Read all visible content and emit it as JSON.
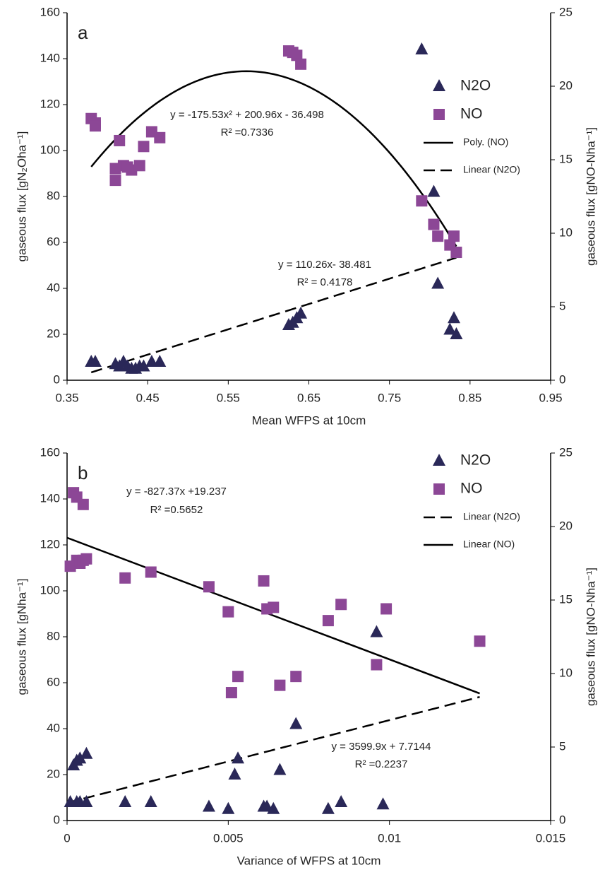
{
  "chart_data": [
    {
      "type": "scatter",
      "panel_label": "a",
      "xlabel": "Mean WFPS at 10cm",
      "ylabel": "gaseous flux [gN₂Oha⁻¹]",
      "y2label": "gaseous flux [gNO-Nha⁻¹]",
      "xlim": [
        0.35,
        0.95
      ],
      "xticks": [
        0.35,
        0.45,
        0.55,
        0.65,
        0.75,
        0.85,
        0.95
      ],
      "ylim": [
        0,
        160
      ],
      "yticks": [
        0,
        20,
        40,
        60,
        80,
        100,
        120,
        140,
        160
      ],
      "y2lim": [
        0,
        25
      ],
      "y2ticks": [
        0,
        5,
        10,
        15,
        20,
        25
      ],
      "series": [
        {
          "name": "N2O",
          "color": "#2a2858",
          "marker": "triangle",
          "x": [
            0.38,
            0.385,
            0.41,
            0.415,
            0.42,
            0.425,
            0.43,
            0.435,
            0.44,
            0.445,
            0.455,
            0.465,
            0.625,
            0.63,
            0.635,
            0.64,
            0.79,
            0.805,
            0.81,
            0.825,
            0.83,
            0.833
          ],
          "values": [
            8,
            8,
            7,
            6,
            8,
            6,
            5,
            5,
            6,
            6,
            8,
            8,
            24,
            25,
            27,
            29,
            144,
            82,
            42,
            22,
            27,
            20
          ]
        },
        {
          "name": "NO",
          "color": "#8c4796",
          "marker": "square",
          "axis": "y2",
          "x": [
            0.38,
            0.385,
            0.385,
            0.41,
            0.41,
            0.415,
            0.42,
            0.425,
            0.43,
            0.44,
            0.445,
            0.455,
            0.465,
            0.625,
            0.63,
            0.635,
            0.64,
            0.79,
            0.805,
            0.81,
            0.825,
            0.83,
            0.833
          ],
          "values": [
            17.8,
            17.5,
            17.3,
            14.4,
            13.6,
            16.3,
            14.6,
            14.5,
            14.3,
            14.6,
            15.9,
            16.9,
            16.5,
            22.4,
            22.3,
            22.1,
            21.5,
            12.2,
            10.6,
            9.8,
            9.2,
            9.8,
            8.7
          ]
        }
      ],
      "trendlines": [
        {
          "name": "Poly. (NO)",
          "style": "solid",
          "axis": "y2",
          "coefficients": [
            -175.53,
            200.96,
            -36.498
          ],
          "x_range": [
            0.38,
            0.833
          ]
        },
        {
          "name": "Linear (N2O)",
          "style": "dashed",
          "coefficients": [
            110.26,
            -38.481
          ],
          "x_range": [
            0.38,
            0.833
          ]
        }
      ],
      "annotations": [
        "y = -175.53x² + 200.96x - 36.498",
        "R² =0.7336",
        "y = 110.26x-  38.481",
        "R² = 0.4178"
      ]
    },
    {
      "type": "scatter",
      "panel_label": "b",
      "xlabel": "Variance of WFPS at 10cm",
      "ylabel": "gaseous flux [gNha⁻¹]",
      "y2label": "gaseous flux [gNO-Nha⁻¹]",
      "xlim": [
        0,
        0.015
      ],
      "xticks": [
        0,
        0.005,
        0.01,
        0.015
      ],
      "ylim": [
        0,
        160
      ],
      "yticks": [
        0,
        20,
        40,
        60,
        80,
        100,
        120,
        140,
        160
      ],
      "y2lim": [
        0,
        25
      ],
      "y2ticks": [
        0,
        5,
        10,
        15,
        20,
        25
      ],
      "series": [
        {
          "name": "N2O",
          "color": "#2a2858",
          "marker": "triangle",
          "x": [
            0.0001,
            0.0002,
            0.0003,
            0.0003,
            0.0004,
            0.0004,
            0.0006,
            0.0006,
            0.0018,
            0.0026,
            0.0044,
            0.005,
            0.0052,
            0.0053,
            0.0061,
            0.0062,
            0.0064,
            0.0066,
            0.0071,
            0.0081,
            0.0085,
            0.0096,
            0.0098
          ],
          "values": [
            8,
            24,
            26,
            8,
            27,
            8,
            29,
            8,
            8,
            8,
            6,
            5,
            20,
            27,
            6,
            6,
            5,
            22,
            42,
            5,
            8,
            82,
            7
          ]
        },
        {
          "name": "NO",
          "color": "#8c4796",
          "marker": "square",
          "axis": "y2",
          "x": [
            0.0001,
            0.0002,
            0.0003,
            0.0003,
            0.0004,
            0.0005,
            0.0005,
            0.0006,
            0.0018,
            0.0026,
            0.0044,
            0.005,
            0.0051,
            0.0053,
            0.0061,
            0.0062,
            0.0064,
            0.0066,
            0.0071,
            0.0081,
            0.0085,
            0.0096,
            0.0099,
            0.0128
          ],
          "values": [
            17.3,
            22.3,
            22.0,
            17.7,
            17.5,
            21.5,
            17.7,
            17.8,
            16.5,
            16.9,
            15.9,
            14.2,
            8.7,
            9.8,
            16.3,
            14.4,
            14.5,
            9.2,
            9.8,
            13.6,
            14.7,
            10.6,
            14.4,
            12.2
          ]
        }
      ],
      "trendlines": [
        {
          "name": "Linear (N2O)",
          "style": "dashed",
          "coefficients": [
            3599.9,
            7.7144
          ],
          "x_range": [
            0,
            0.0128
          ]
        },
        {
          "name": "Linear (NO)",
          "style": "solid",
          "axis": "y2",
          "coefficients": [
            -827.37,
            19.237
          ],
          "x_range": [
            0,
            0.0128
          ]
        }
      ],
      "annotations": [
        "y = -827.37x +19.237",
        "R² =0.5652",
        "y = 3599.9x + 7.7144",
        "R² =0.2237"
      ]
    }
  ]
}
